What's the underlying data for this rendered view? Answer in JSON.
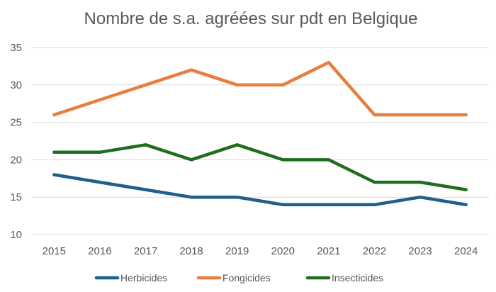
{
  "chart_data": {
    "type": "line",
    "title": "Nombre de s.a. agréées sur pdt en Belgique",
    "xlabel": "",
    "ylabel": "",
    "ylim": [
      10,
      35
    ],
    "yticks": [
      "10",
      "15",
      "20",
      "25",
      "30",
      "35"
    ],
    "categories": [
      "2015",
      "2016",
      "2017",
      "2018",
      "2019",
      "2020",
      "2021",
      "2022",
      "2023",
      "2024"
    ],
    "grid": true,
    "legend_position": "bottom",
    "series": [
      {
        "name": "Herbicides",
        "color": "#1f5f8b",
        "values": [
          18,
          17,
          16,
          15,
          15,
          14,
          14,
          14,
          15,
          14
        ]
      },
      {
        "name": "Fongicides",
        "color": "#e87d3e",
        "values": [
          26,
          28,
          30,
          32,
          30,
          30,
          33,
          26,
          26,
          26
        ]
      },
      {
        "name": "Insecticides",
        "color": "#1f6e1f",
        "values": [
          21,
          21,
          22,
          20,
          22,
          20,
          20,
          17,
          17,
          16
        ]
      }
    ]
  }
}
